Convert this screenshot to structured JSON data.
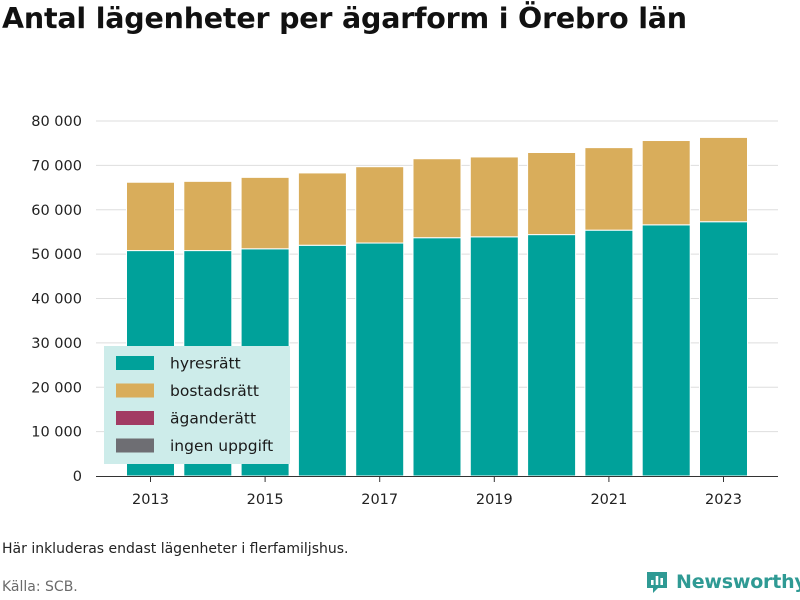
{
  "title": "Antal lägenheter per ägarform i Örebro län",
  "note": "Här inkluderas endast lägenheter i flerfamiljshus.",
  "source": "Källa: SCB.",
  "brand": "Newsworthy",
  "colors": {
    "hyresratt": "#00a19a",
    "bostadsratt": "#d9ad5b",
    "aganderatt": "#a23b63",
    "ingen_uppgift": "#6e6e73",
    "grid": "#dedede",
    "legend_bg": "#cdecea",
    "brand": "#2f9a94"
  },
  "chart_data": {
    "type": "bar",
    "stacked": true,
    "categories": [
      "2013",
      "2014",
      "2015",
      "2016",
      "2017",
      "2018",
      "2019",
      "2020",
      "2021",
      "2022",
      "2023"
    ],
    "x_tick_labels": [
      "2013",
      "2015",
      "2017",
      "2019",
      "2021",
      "2023"
    ],
    "series": [
      {
        "name": "hyresrätt",
        "values": [
          50800,
          50800,
          51200,
          52000,
          52500,
          53700,
          53900,
          54400,
          55400,
          56600,
          57300
        ]
      },
      {
        "name": "bostadsrätt",
        "values": [
          15400,
          15600,
          16100,
          16300,
          17200,
          17800,
          18000,
          18500,
          18600,
          19000,
          19000
        ]
      },
      {
        "name": "äganderätt",
        "values": [
          0,
          0,
          0,
          0,
          0,
          0,
          0,
          0,
          0,
          0,
          0
        ]
      },
      {
        "name": "ingen uppgift",
        "values": [
          0,
          0,
          0,
          0,
          0,
          0,
          0,
          0,
          0,
          0,
          0
        ]
      }
    ],
    "ylim": [
      0,
      80000
    ],
    "y_ticks": [
      0,
      10000,
      20000,
      30000,
      40000,
      50000,
      60000,
      70000,
      80000
    ],
    "y_tick_labels": [
      "0",
      "10 000",
      "20 000",
      "30 000",
      "40 000",
      "50 000",
      "60 000",
      "70 000",
      "80 000"
    ],
    "grid": true,
    "legend_position": "bottom-left"
  }
}
